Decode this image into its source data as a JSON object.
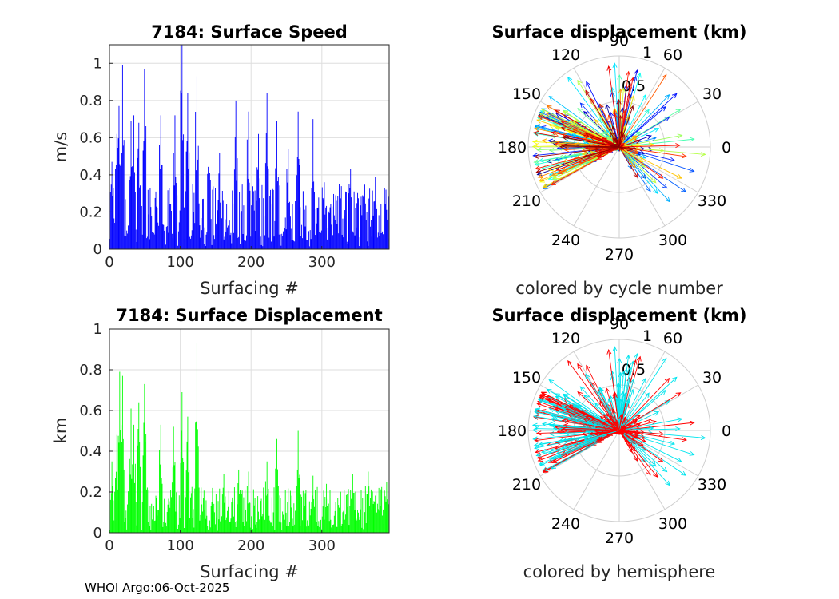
{
  "footer": "WHOI Argo:06-Oct-2025",
  "chart_data": [
    {
      "type": "bar",
      "title": "7184: Surface Speed",
      "xlabel": "Surfacing #",
      "ylabel": "m/s",
      "xlim": [
        0,
        395
      ],
      "ylim": [
        0,
        1.1
      ],
      "xticks": [
        0,
        100,
        200,
        300
      ],
      "yticks": [
        0,
        0.2,
        0.4,
        0.6,
        0.8,
        1
      ],
      "color": "#0000ff",
      "grid": true,
      "n": 395,
      "peaks": [
        {
          "x": 3,
          "y": 0.47
        },
        {
          "x": 10,
          "y": 0.62
        },
        {
          "x": 13,
          "y": 0.77
        },
        {
          "x": 18,
          "y": 0.99
        },
        {
          "x": 30,
          "y": 0.69
        },
        {
          "x": 34,
          "y": 0.72
        },
        {
          "x": 41,
          "y": 0.68
        },
        {
          "x": 49,
          "y": 0.97
        },
        {
          "x": 72,
          "y": 0.72
        },
        {
          "x": 92,
          "y": 0.72
        },
        {
          "x": 102,
          "y": 1.1
        },
        {
          "x": 110,
          "y": 0.84
        },
        {
          "x": 123,
          "y": 0.93
        },
        {
          "x": 140,
          "y": 0.69
        },
        {
          "x": 155,
          "y": 0.52
        },
        {
          "x": 178,
          "y": 0.8
        },
        {
          "x": 196,
          "y": 0.74
        },
        {
          "x": 210,
          "y": 0.62
        },
        {
          "x": 222,
          "y": 0.84
        },
        {
          "x": 236,
          "y": 0.69
        },
        {
          "x": 252,
          "y": 0.54
        },
        {
          "x": 266,
          "y": 0.74
        },
        {
          "x": 287,
          "y": 0.7
        },
        {
          "x": 303,
          "y": 0.36
        },
        {
          "x": 320,
          "y": 0.26
        },
        {
          "x": 340,
          "y": 0.43
        },
        {
          "x": 359,
          "y": 0.56
        },
        {
          "x": 375,
          "y": 0.39
        },
        {
          "x": 390,
          "y": 0.32
        }
      ]
    },
    {
      "type": "bar",
      "title": "7184: Surface Displacement",
      "xlabel": "Surfacing #",
      "ylabel": "km",
      "xlim": [
        0,
        395
      ],
      "ylim": [
        0,
        1
      ],
      "xticks": [
        0,
        100,
        200,
        300
      ],
      "yticks": [
        0,
        0.2,
        0.4,
        0.6,
        0.8,
        1
      ],
      "color": "#00ff00",
      "grid": true,
      "n": 395,
      "peaks": [
        {
          "x": 3,
          "y": 0.35
        },
        {
          "x": 10,
          "y": 0.48
        },
        {
          "x": 14,
          "y": 0.79
        },
        {
          "x": 18,
          "y": 0.77
        },
        {
          "x": 30,
          "y": 0.61
        },
        {
          "x": 34,
          "y": 0.53
        },
        {
          "x": 41,
          "y": 0.64
        },
        {
          "x": 49,
          "y": 0.73
        },
        {
          "x": 72,
          "y": 0.53
        },
        {
          "x": 90,
          "y": 0.52
        },
        {
          "x": 102,
          "y": 0.69
        },
        {
          "x": 110,
          "y": 0.57
        },
        {
          "x": 123,
          "y": 0.93
        },
        {
          "x": 145,
          "y": 0.22
        },
        {
          "x": 161,
          "y": 0.29
        },
        {
          "x": 182,
          "y": 0.31
        },
        {
          "x": 196,
          "y": 0.3
        },
        {
          "x": 222,
          "y": 0.35
        },
        {
          "x": 236,
          "y": 0.46
        },
        {
          "x": 266,
          "y": 0.5
        },
        {
          "x": 287,
          "y": 0.28
        },
        {
          "x": 306,
          "y": 0.24
        },
        {
          "x": 343,
          "y": 0.29
        },
        {
          "x": 365,
          "y": 0.3
        },
        {
          "x": 380,
          "y": 0.22
        },
        {
          "x": 391,
          "y": 0.25
        }
      ]
    },
    {
      "type": "polar",
      "title": "Surface displacement (km)",
      "caption": "colored by cycle number",
      "rlim": [
        0,
        1
      ],
      "rticks": [
        "0.5",
        "1"
      ],
      "thetaticks": [
        "0",
        "30",
        "60",
        "90",
        "120",
        "150",
        "180",
        "210",
        "240",
        "270",
        "300",
        "330"
      ],
      "colormap": "jet",
      "n_arrows": 395
    },
    {
      "type": "polar",
      "title": "Surface displacement (km)",
      "caption": "colored by hemisphere",
      "rlim": [
        0,
        1
      ],
      "rticks": [
        "0.5",
        "1"
      ],
      "thetaticks": [
        "0",
        "30",
        "60",
        "90",
        "120",
        "150",
        "180",
        "210",
        "240",
        "270",
        "300",
        "330"
      ],
      "colors": [
        "#00e5ee",
        "#ff0000"
      ],
      "n_arrows": 395
    }
  ]
}
